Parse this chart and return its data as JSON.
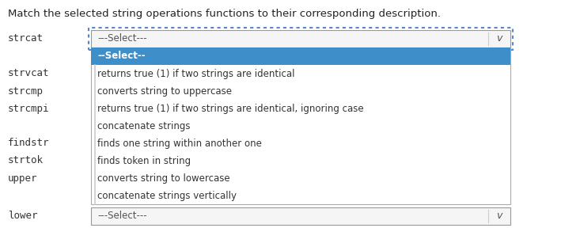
{
  "title": "Match the selected string operations functions to their corresponding description.",
  "title_fontsize": 9.5,
  "title_color": "#222222",
  "bg_color": "#ffffff",
  "functions": [
    "strcat",
    "strvcat",
    "strcmp",
    "strcmpi",
    "findstr",
    "strtok",
    "upper",
    "lower"
  ],
  "functions_font": "monospace",
  "functions_fontsize": 9,
  "functions_color": "#333333",
  "dropdown_top_text": "---Select---",
  "dropdown_top_dotted_color": "#5588cc",
  "dropdown_top_bg": "#f5f5f5",
  "dropdown_top_border": "#999999",
  "dropdown_open_bg": "#ffffff",
  "dropdown_open_border": "#aaaaaa",
  "highlight_row_text": "--Select--",
  "highlight_row_bg": "#3d8ec9",
  "highlight_row_text_color": "#ffffff",
  "dropdown_items": [
    "--Select--",
    "returns true (1) if two strings are identical",
    "converts string to uppercase",
    "returns true (1) if two strings are identical, ignoring case",
    "concatenate strings",
    "finds one string within another one",
    "finds token in string",
    "converts string to lowercase",
    "concatenate strings vertically"
  ],
  "dropdown_bottom_text": "---Select---",
  "dropdown_bottom_bg": "#f5f5f5",
  "dropdown_bottom_border": "#999999",
  "chevron_color": "#555555",
  "item_fontsize": 8.5,
  "item_text_color": "#333333",
  "left_border_color": "#cccccc"
}
